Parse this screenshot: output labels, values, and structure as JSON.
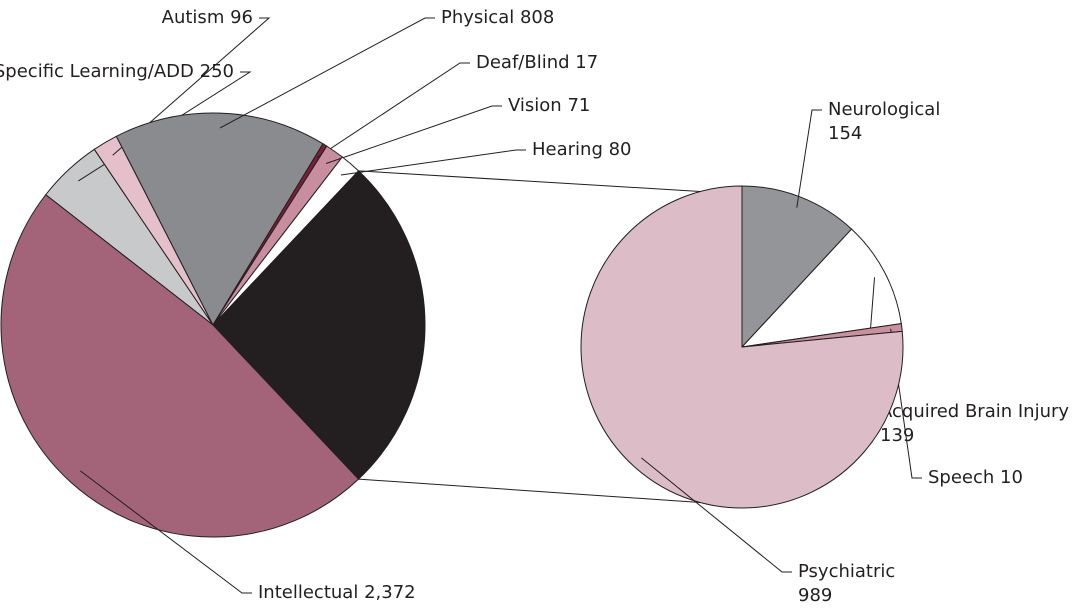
{
  "chart_data": [
    {
      "type": "pie",
      "categories": [
        "Specific Learning/ADD",
        "Autism",
        "Physical",
        "Deaf/Blind",
        "Vision",
        "Hearing",
        "Intellectual"
      ],
      "values": [
        250,
        96,
        808,
        17,
        71,
        80,
        2372
      ],
      "value_labels": [
        "250",
        "96",
        "808",
        "17",
        "71",
        "80",
        "2,372"
      ],
      "colors": [
        "#c8c9cb",
        "#e5c0cb",
        "#8a8b8e",
        "#7a1f3a",
        "#c98da0",
        "#ffffff",
        "#a36379"
      ],
      "other_color": "#231f20"
    },
    {
      "type": "pie",
      "categories": [
        "Neurological",
        "Acquired Brain Injury",
        "Speech",
        "Psychiatric"
      ],
      "values": [
        154,
        139,
        10,
        989
      ],
      "colors": [
        "#939598",
        "#ffffff",
        "#c9909f",
        "#dcbcc6"
      ]
    }
  ]
}
